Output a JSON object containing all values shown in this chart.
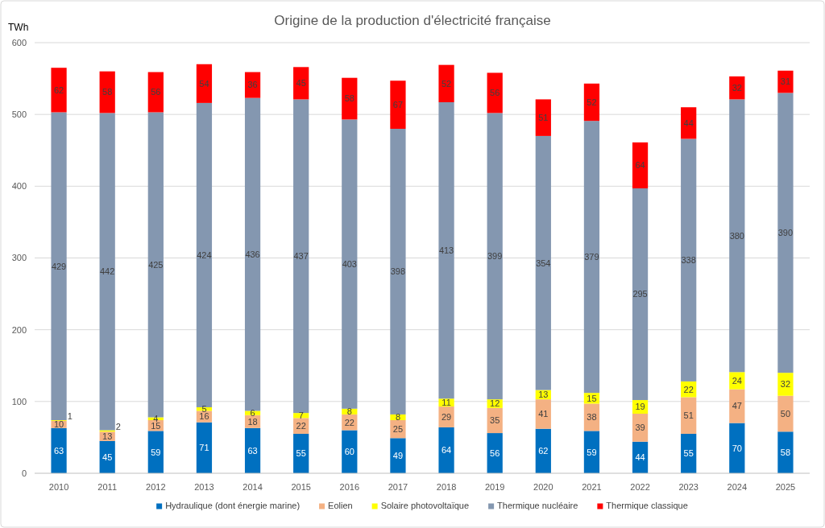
{
  "chart_data": {
    "type": "bar",
    "title": "Origine de la production d'électricité française",
    "ylabel": "TWh",
    "categories": [
      "2010",
      "2011",
      "2012",
      "2013",
      "2014",
      "2015",
      "2016",
      "2017",
      "2018",
      "2019",
      "2020",
      "2021",
      "2022",
      "2023",
      "2024",
      "2025"
    ],
    "series": [
      {
        "name": "Hydraulique (dont énergie marine)",
        "color": "#0070c0",
        "values": [
          63,
          45,
          59,
          71,
          63,
          55,
          60,
          49,
          64,
          56,
          62,
          59,
          44,
          55,
          70,
          58
        ]
      },
      {
        "name": "Eolien",
        "color": "#f4b183",
        "values": [
          10,
          13,
          15,
          16,
          18,
          22,
          22,
          25,
          29,
          35,
          41,
          38,
          39,
          51,
          47,
          50
        ]
      },
      {
        "name": "Solaire photovoltaïque",
        "color": "#ffff00",
        "values": [
          1,
          2,
          4,
          5,
          6,
          7,
          8,
          8,
          11,
          12,
          13,
          15,
          19,
          22,
          24,
          32
        ]
      },
      {
        "name": "Thermique nucléaire",
        "color": "#8497b0",
        "values": [
          429,
          442,
          425,
          424,
          436,
          437,
          403,
          398,
          413,
          399,
          354,
          379,
          295,
          338,
          380,
          390
        ]
      },
      {
        "name": "Thermique classique",
        "color": "#ff0000",
        "values": [
          62,
          58,
          56,
          54,
          36,
          45,
          58,
          67,
          52,
          56,
          51,
          52,
          64,
          44,
          32,
          31
        ]
      }
    ],
    "stacked": true,
    "ylim": [
      0,
      600
    ],
    "yticks": [
      0,
      100,
      200,
      300,
      400,
      500,
      600
    ],
    "grid": "y",
    "legend": "bottom",
    "data_labels": true
  }
}
